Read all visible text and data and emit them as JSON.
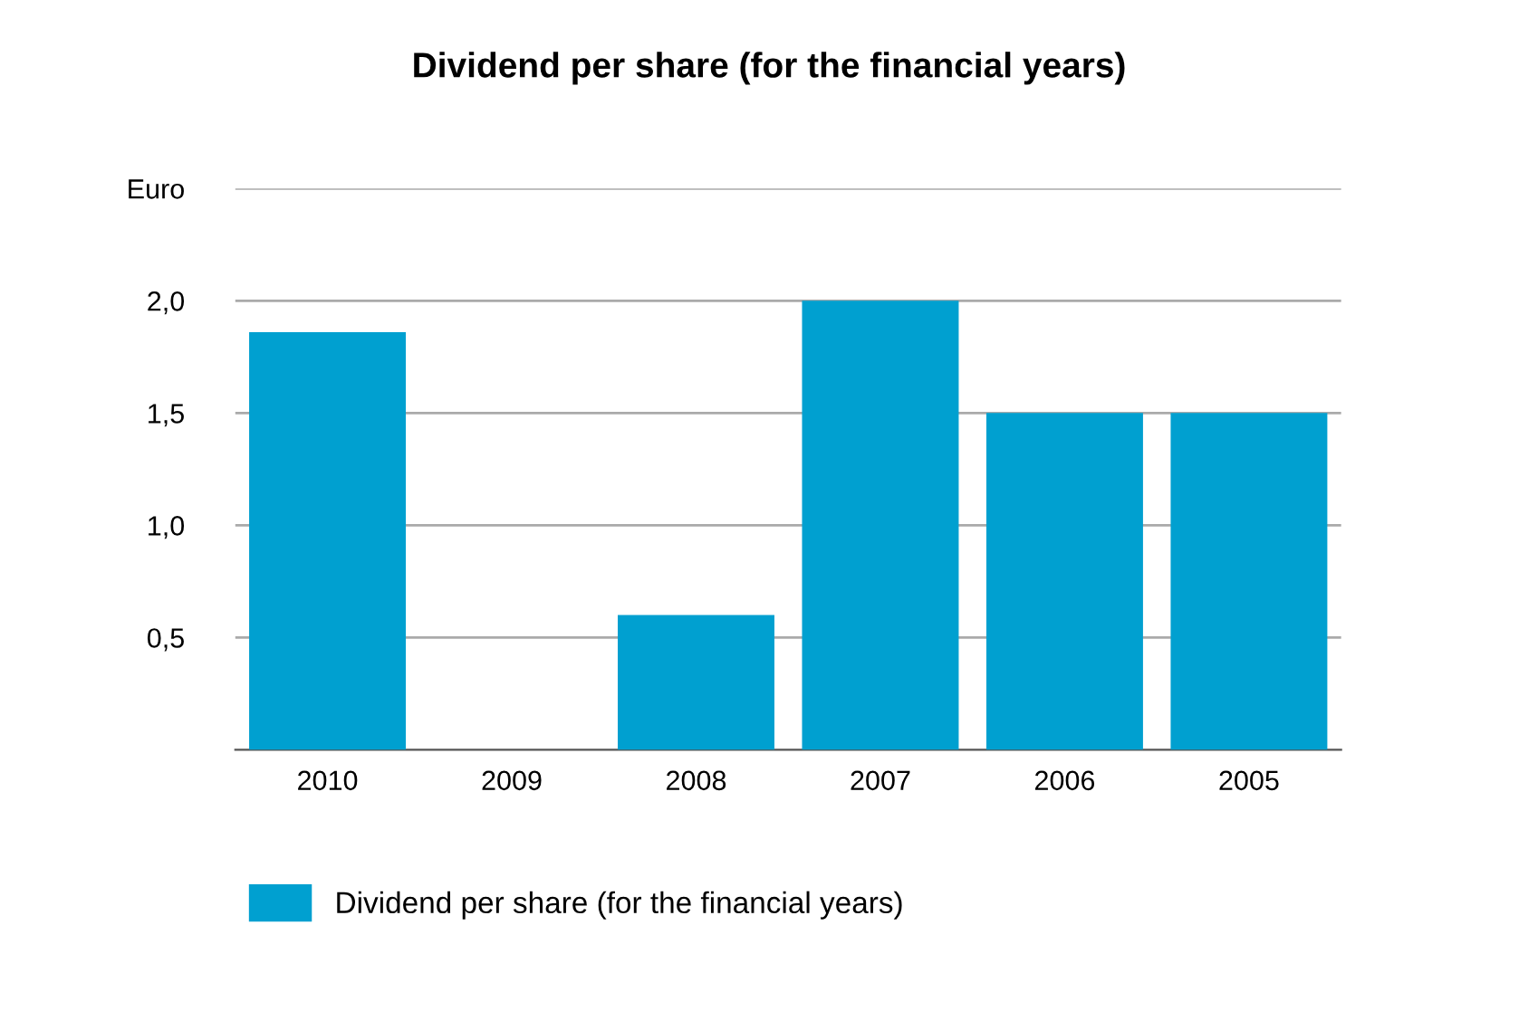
{
  "chart_data": {
    "type": "bar",
    "title": "Dividend per share (for the financial years)",
    "categories": [
      "2010",
      "2009",
      "2008",
      "2007",
      "2006",
      "2005"
    ],
    "series": [
      {
        "name": "Dividend per share (for the financial years)",
        "color": "#00a0d0",
        "values": [
          1.86,
          0,
          0.6,
          2.0,
          1.5,
          1.5
        ]
      }
    ],
    "ylim": [
      0,
      2.5
    ],
    "yticks": [
      {
        "value": 0.5,
        "label": "0,5"
      },
      {
        "value": 1.0,
        "label": "1,0"
      },
      {
        "value": 1.5,
        "label": "1,5"
      },
      {
        "value": 2.0,
        "label": "2,0"
      },
      {
        "value": 2.5,
        "label": "Euro"
      }
    ],
    "grid": "y",
    "legend": "bottom left"
  }
}
